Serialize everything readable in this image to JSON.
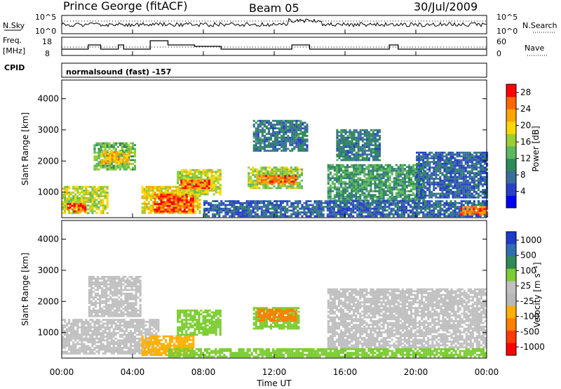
{
  "header": {
    "station": "Prince George (fitACF)",
    "beam": "Beam 05",
    "date": "30/Jul/2009"
  },
  "noise_panel": {
    "left_label": "N.Sky",
    "right_label": "N.Search",
    "left_ticks": [
      "10^5",
      "10^0"
    ],
    "right_ticks": [
      "10^5",
      "10^0"
    ]
  },
  "freq_panel": {
    "left_label": "Freq.",
    "left_unit": "[MHz]",
    "right_label": "Nave",
    "left_ticks": [
      "18",
      "8"
    ],
    "right_ticks": [
      "60",
      "0"
    ]
  },
  "cpid": {
    "label": "CPID",
    "value": "normalsound (fast) -157"
  },
  "colors": {
    "power": [
      "#0000ff",
      "#2840c8",
      "#3a6e9c",
      "#2e8b57",
      "#5cb85c",
      "#9acd32",
      "#ffd700",
      "#ffa500",
      "#ff6600",
      "#ff0000"
    ],
    "velocity": [
      "#1e3cc8",
      "#2f6fb0",
      "#2e8b57",
      "#7ccd32",
      "#c0c0c0",
      "#b8b8b8",
      "#ffb000",
      "#ff8000",
      "#ff3c00",
      "#ff0000"
    ]
  },
  "chart_data": [
    {
      "type": "heatmap",
      "name": "power",
      "ylabel": "Slant Range [km]",
      "xlabel": "",
      "ylim": [
        180,
        4600
      ],
      "y_ticks": [
        "1000",
        "2000",
        "3000",
        "4000"
      ],
      "colorbar_label": "Power [dB]",
      "colorbar_ticks": [
        "4",
        "8",
        "12",
        "16",
        "20",
        "24",
        "28"
      ],
      "colorbar_range": [
        0,
        30
      ],
      "regions": [
        {
          "t0": 0.0,
          "t1": 2.6,
          "r0": 300,
          "r1": 1200,
          "v": 18
        },
        {
          "t0": 0.3,
          "t1": 1.3,
          "r0": 350,
          "r1": 650,
          "v": 28
        },
        {
          "t0": 1.8,
          "t1": 4.2,
          "r0": 1700,
          "r1": 2600,
          "v": 14
        },
        {
          "t0": 2.2,
          "t1": 3.8,
          "r0": 1900,
          "r1": 2300,
          "v": 22
        },
        {
          "t0": 4.5,
          "t1": 7.8,
          "r0": 300,
          "r1": 1200,
          "v": 20
        },
        {
          "t0": 5.2,
          "t1": 7.4,
          "r0": 350,
          "r1": 900,
          "v": 28
        },
        {
          "t0": 6.5,
          "t1": 9.0,
          "r0": 900,
          "r1": 1700,
          "v": 18
        },
        {
          "t0": 6.7,
          "t1": 8.3,
          "r0": 1100,
          "r1": 1400,
          "v": 27
        },
        {
          "t0": 10.5,
          "t1": 13.5,
          "r0": 1100,
          "r1": 1800,
          "v": 16
        },
        {
          "t0": 11.0,
          "t1": 13.2,
          "r0": 1250,
          "r1": 1500,
          "v": 26
        },
        {
          "t0": 10.8,
          "t1": 13.8,
          "r0": 2300,
          "r1": 3300,
          "v": 8
        },
        {
          "t0": 15.0,
          "t1": 20.5,
          "r0": 700,
          "r1": 1900,
          "v": 11
        },
        {
          "t0": 15.5,
          "t1": 18.0,
          "r0": 2000,
          "r1": 3000,
          "v": 8
        },
        {
          "t0": 20.0,
          "t1": 24.0,
          "r0": 800,
          "r1": 2300,
          "v": 6
        },
        {
          "t0": 8.0,
          "t1": 24.0,
          "r0": 200,
          "r1": 700,
          "v": 6
        },
        {
          "t0": 22.5,
          "t1": 24.0,
          "r0": 250,
          "r1": 500,
          "v": 26
        }
      ]
    },
    {
      "type": "heatmap",
      "name": "velocity",
      "ylabel": "Slant Range [km]",
      "xlabel": "Time UT",
      "ylim": [
        180,
        4600
      ],
      "y_ticks": [
        "1000",
        "2000",
        "3000",
        "4000"
      ],
      "x_ticks": [
        "00:00",
        "04:00",
        "08:00",
        "12:00",
        "16:00",
        "20:00",
        "00:00"
      ],
      "xlim": [
        0,
        24
      ],
      "colorbar_label": "Velocity [m s⁻¹]",
      "colorbar_ticks": [
        "1000",
        "500",
        "100",
        "25",
        "-25",
        "-100",
        "-500",
        "-1000"
      ],
      "regions": [
        {
          "t0": 0.0,
          "t1": 5.5,
          "r0": 300,
          "r1": 1400,
          "v": 0
        },
        {
          "t0": 1.5,
          "t1": 4.5,
          "r0": 1500,
          "r1": 2800,
          "v": 0
        },
        {
          "t0": 4.5,
          "t1": 7.5,
          "r0": 250,
          "r1": 900,
          "v": -60
        },
        {
          "t0": 6.5,
          "t1": 9.0,
          "r0": 900,
          "r1": 1700,
          "v": 150
        },
        {
          "t0": 10.8,
          "t1": 13.4,
          "r0": 1100,
          "r1": 1800,
          "v": 120
        },
        {
          "t0": 11.0,
          "t1": 13.2,
          "r0": 1350,
          "r1": 1750,
          "v": -300
        },
        {
          "t0": 15.0,
          "t1": 24.0,
          "r0": 500,
          "r1": 2400,
          "v": 0
        },
        {
          "t0": 6.0,
          "t1": 24.0,
          "r0": 200,
          "r1": 450,
          "v": 60
        }
      ]
    }
  ]
}
